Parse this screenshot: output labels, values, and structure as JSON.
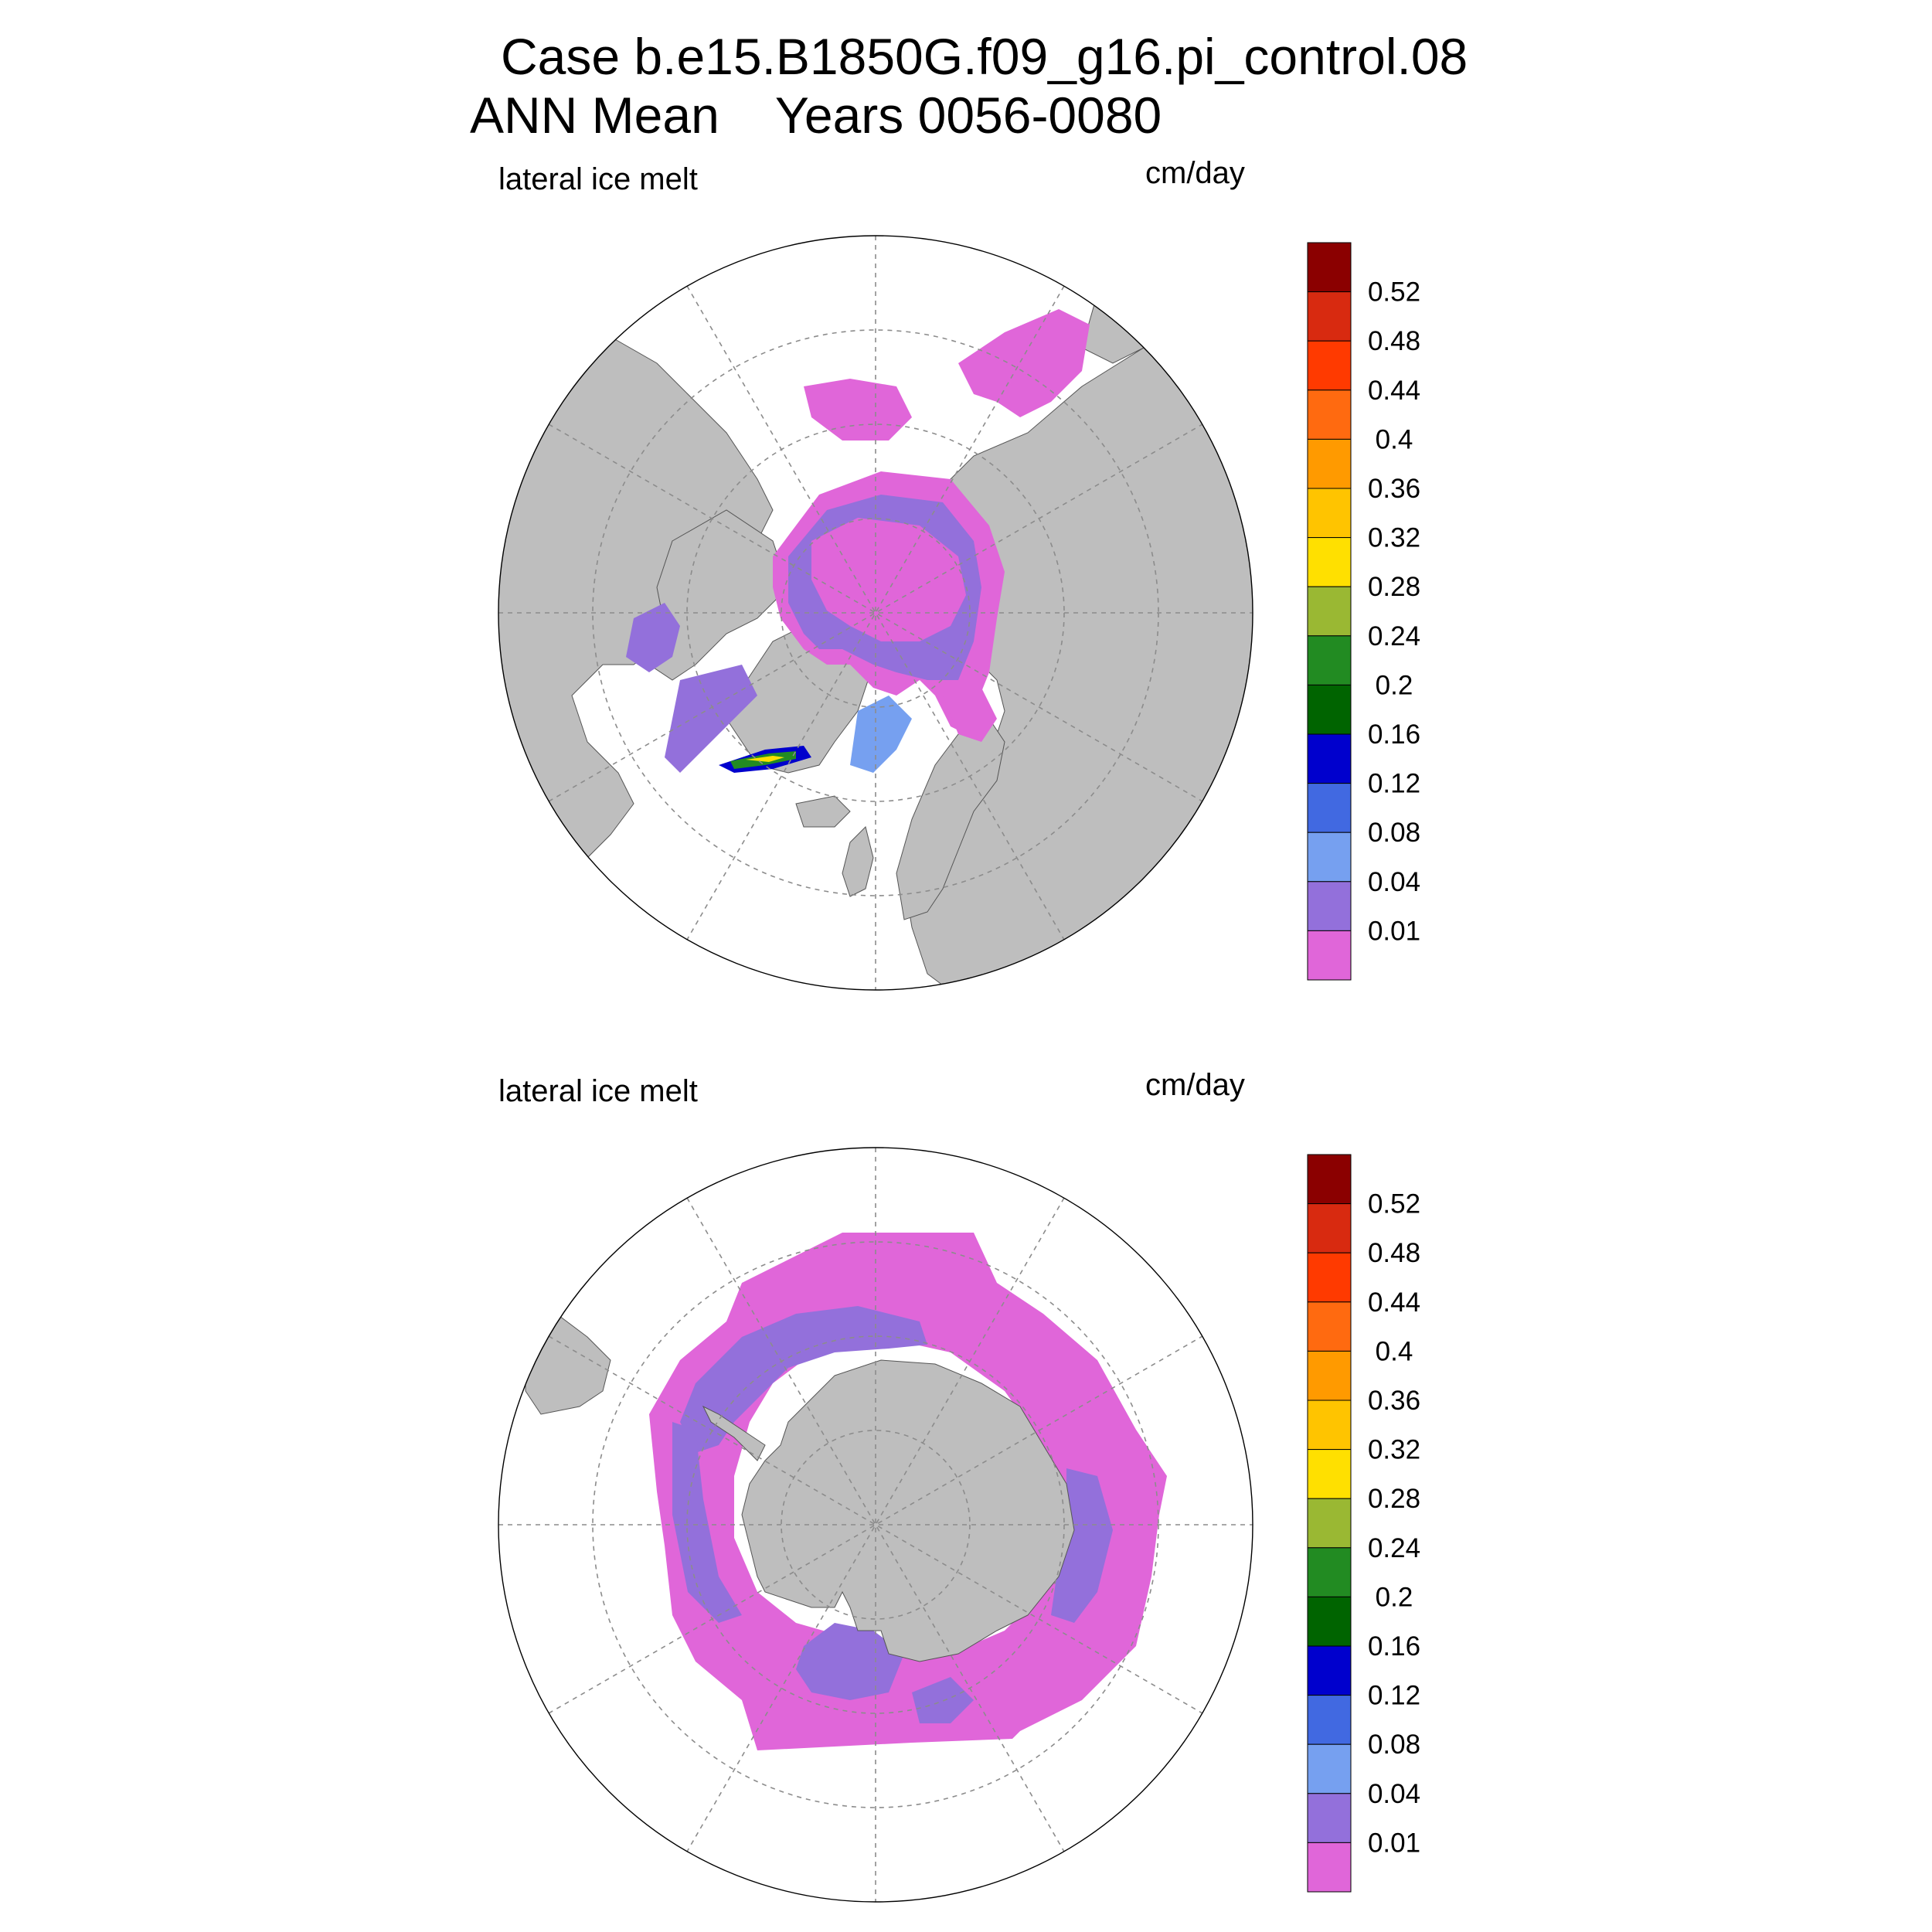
{
  "title": {
    "line1": "Case b.e15.B1850G.f09_g16.pi_control.08",
    "line2": "ANN Mean    Years 0056-0080"
  },
  "panels": [
    {
      "id": "north",
      "variable_label": "lateral ice melt",
      "units": "cm/day"
    },
    {
      "id": "south",
      "variable_label": "lateral ice melt",
      "units": "cm/day"
    }
  ],
  "colorbar": {
    "labels": [
      "0.01",
      "0.04",
      "0.08",
      "0.12",
      "0.16",
      "0.2",
      "0.24",
      "0.28",
      "0.32",
      "0.36",
      "0.4",
      "0.44",
      "0.48",
      "0.52"
    ],
    "colors": [
      "#e066d9",
      "#9370db",
      "#76a0f0",
      "#4169e1",
      "#0000cd",
      "#006400",
      "#228b22",
      "#9ab833",
      "#ffe000",
      "#ffc400",
      "#ff9a00",
      "#ff6a10",
      "#ff3a00",
      "#d82a10",
      "#8b0000"
    ]
  },
  "map_colors": {
    "land": "#bebebe",
    "ocean": "#ffffff",
    "grid": "#8c8c8c"
  }
}
